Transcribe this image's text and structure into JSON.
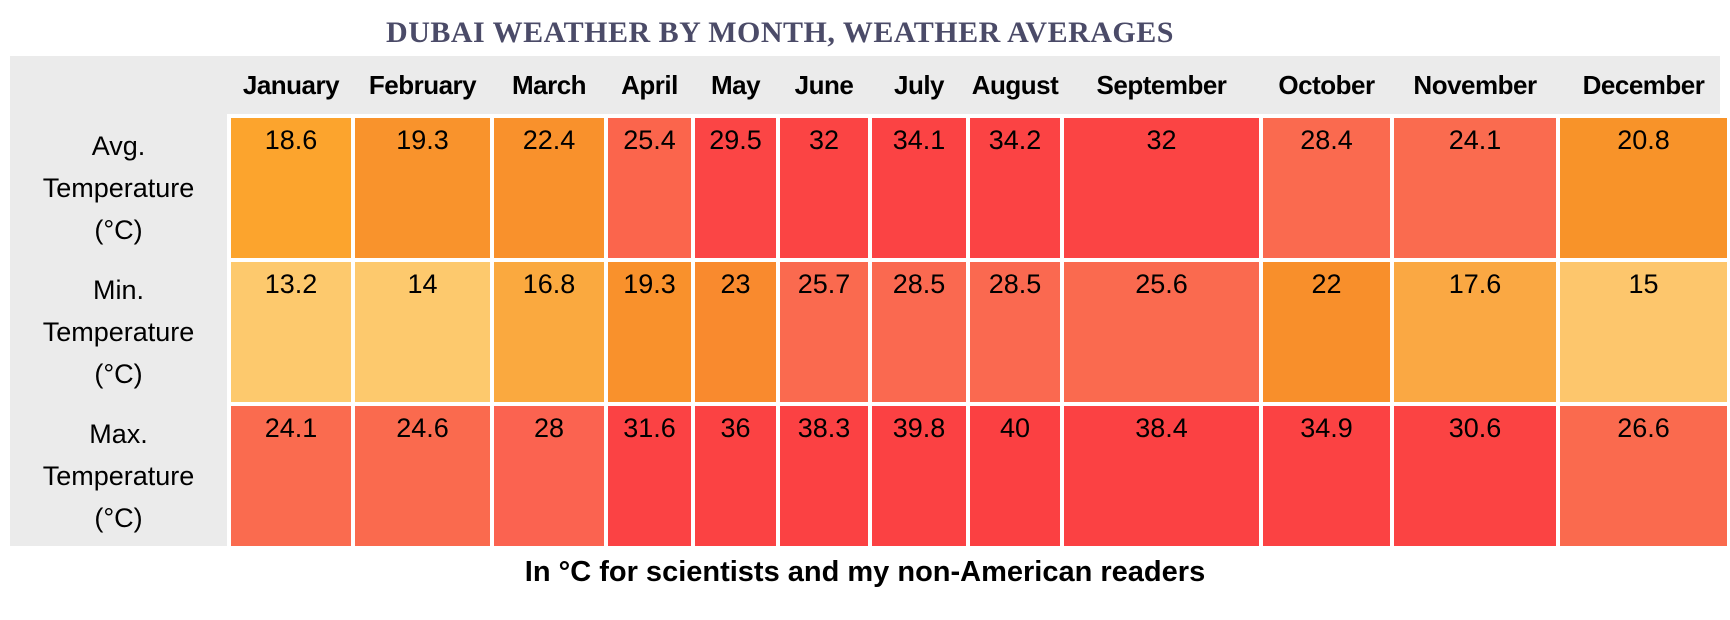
{
  "title": "DUBAI WEATHER BY MONTH, WEATHER AVERAGES",
  "footer": "In °C for scientists and my non-American readers",
  "colors": {
    "title_text": "#4b4b68",
    "header_band_bg": "#ebebeb",
    "label_column_bg": "#ebebeb",
    "cell_gap": "#ffffff",
    "cell_text": "#000000",
    "scale_low": "#fdc96d",
    "scale_mid": "#f9912c",
    "scale_high": "#fb4042"
  },
  "chart_data": {
    "type": "heatmap",
    "title": "DUBAI WEATHER BY MONTH, WEATHER AVERAGES",
    "caption": "In °C for scientists and my non-American readers",
    "unit": "°C",
    "value_range": [
      13.2,
      40
    ],
    "legend_position": "none",
    "grid": false,
    "categories": [
      "January",
      "February",
      "March",
      "April",
      "May",
      "June",
      "July",
      "August",
      "September",
      "October",
      "November",
      "December"
    ],
    "rows": [
      {
        "label": "Avg. Temperature (°C)",
        "label_lines": [
          "Avg.",
          "Temperature",
          "(°C)"
        ],
        "values": [
          18.6,
          19.3,
          22.4,
          25.4,
          29.5,
          32,
          34.1,
          34.2,
          32,
          28.4,
          24.1,
          20.8
        ],
        "colors": [
          "#fca42d",
          "#f9932c",
          "#f9912c",
          "#fb654c",
          "#fb4545",
          "#fb4444",
          "#fb4344",
          "#fb4344",
          "#fb4444",
          "#fa6a4f",
          "#fa6b4f",
          "#f89329"
        ]
      },
      {
        "label": "Min. Temperature (°C)",
        "label_lines": [
          "Min.",
          "Temperature",
          "(°C)"
        ],
        "values": [
          13.2,
          14,
          16.8,
          19.3,
          23,
          25.7,
          28.5,
          28.5,
          25.6,
          22,
          17.6,
          15
        ],
        "colors": [
          "#fdc96d",
          "#fdc96d",
          "#faa93f",
          "#f9912c",
          "#f98a2e",
          "#fa6a4f",
          "#fa6950",
          "#fa6950",
          "#fa6a4f",
          "#f88f2b",
          "#faa843",
          "#fdc66c"
        ]
      },
      {
        "label": "Max. Temperature (°C)",
        "label_lines": [
          "Max.",
          "Temperature",
          "(°C)"
        ],
        "values": [
          24.1,
          24.6,
          28,
          31.6,
          36,
          38.3,
          39.8,
          40,
          38.4,
          34.9,
          30.6,
          26.6
        ],
        "colors": [
          "#fa6b4f",
          "#fa6a4e",
          "#fb6350",
          "#fb4244",
          "#fb4243",
          "#fb4143",
          "#fb4143",
          "#fb4042",
          "#fb4143",
          "#fb4243",
          "#fb4343",
          "#fa6a4e"
        ]
      }
    ]
  }
}
